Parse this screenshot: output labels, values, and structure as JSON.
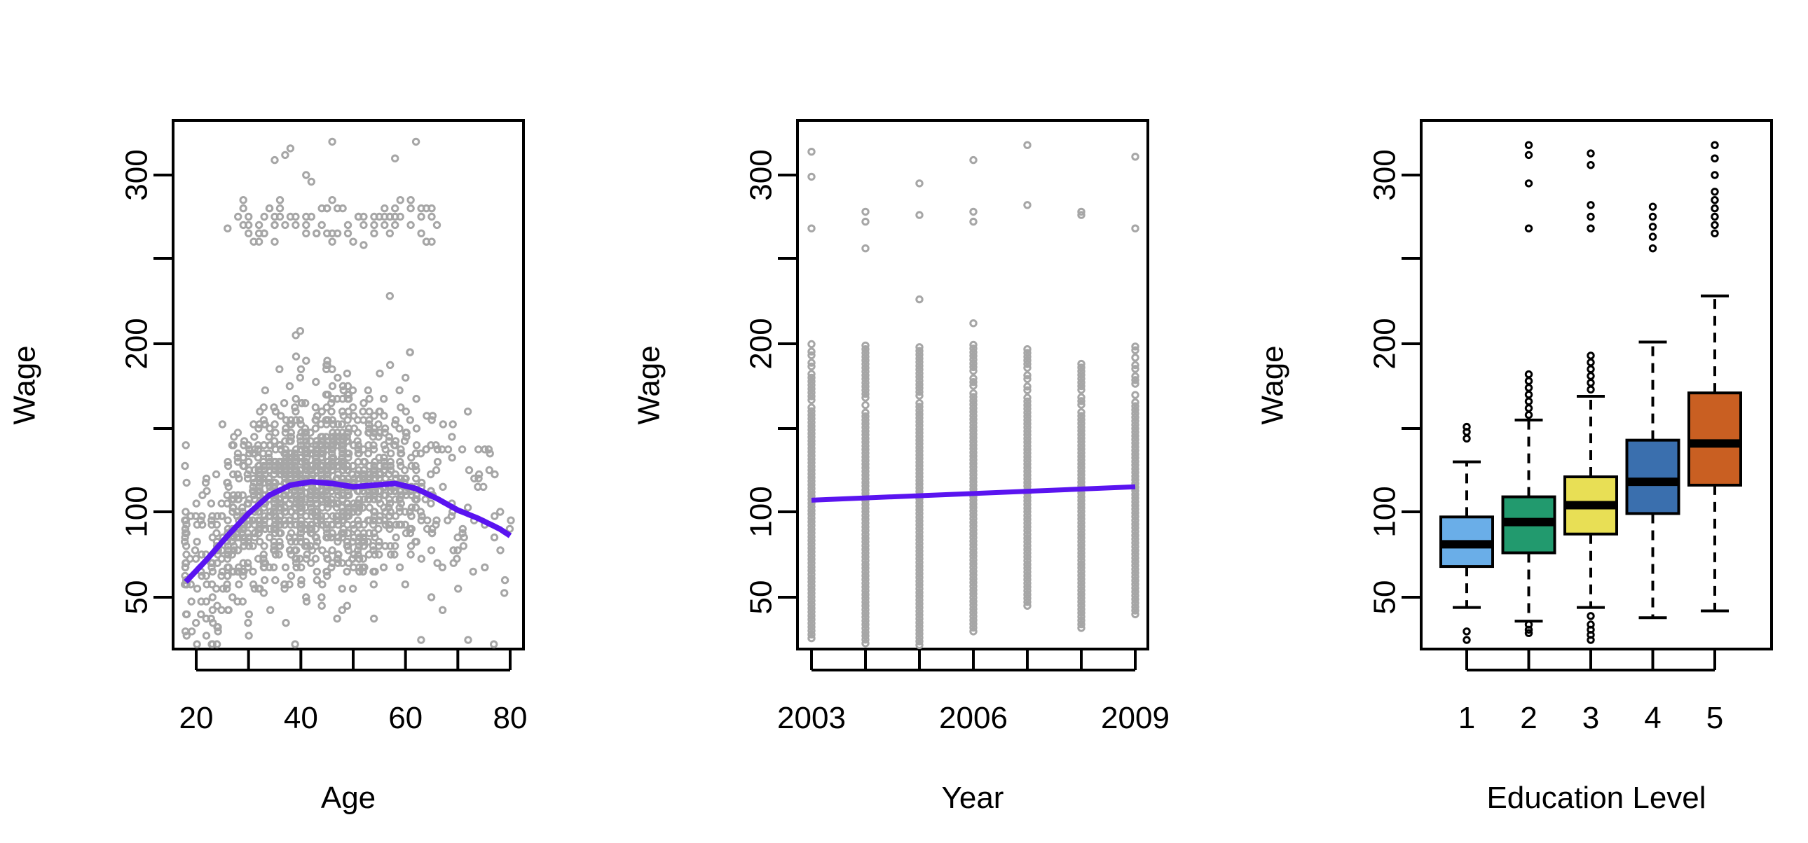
{
  "chart_data": [
    {
      "type": "scatter",
      "xlabel": "Age",
      "ylabel": "Wage",
      "xlim": [
        17,
        82
      ],
      "ylim": [
        20,
        330
      ],
      "xticks": [
        "20",
        "40",
        "60",
        "80"
      ],
      "xtick_values": [
        20,
        40,
        60,
        80
      ],
      "xticks_minor": [
        30,
        50,
        70
      ],
      "yticks": [
        "50",
        "100",
        "200",
        "300"
      ],
      "ytick_values": [
        50,
        100,
        200,
        300
      ],
      "yticks_minor": [
        150,
        250
      ],
      "point_color": "#a6a6a6",
      "fit_color": "#5a14f0",
      "fit_line": {
        "x": [
          18,
          22,
          26,
          30,
          34,
          38,
          42,
          46,
          50,
          54,
          58,
          62,
          66,
          70,
          74,
          78,
          80
        ],
        "y": [
          59,
          72,
          86,
          99,
          110,
          116,
          118,
          117,
          115,
          116,
          117,
          114,
          108,
          101,
          96,
          90,
          86
        ]
      },
      "high_wage_cluster": {
        "age_range": [
          28,
          66
        ],
        "wage_range": [
          260,
          285
        ],
        "count": 80
      },
      "bulk_points_count": 1500
    },
    {
      "type": "scatter",
      "xlabel": "Year",
      "ylabel": "Wage",
      "xlim": [
        2002.8,
        2009.3
      ],
      "ylim": [
        20,
        330
      ],
      "xticks": [
        "2003",
        "2006",
        "2009"
      ],
      "xtick_values": [
        2003,
        2006,
        2009
      ],
      "xticks_minor": [
        2004,
        2005,
        2007,
        2008
      ],
      "yticks": [
        "50",
        "100",
        "200",
        "300"
      ],
      "ytick_values": [
        50,
        100,
        200,
        300
      ],
      "yticks_minor": [
        150,
        250
      ],
      "point_color": "#a6a6a6",
      "fit_color": "#5a14f0",
      "fit_line": {
        "x": [
          2003,
          2009
        ],
        "y": [
          107,
          115
        ]
      },
      "years": [
        2003,
        2004,
        2005,
        2006,
        2007,
        2008,
        2009
      ],
      "year_ranges": [
        {
          "year": 2003,
          "min": 26,
          "max": 200,
          "outliers": [
            268,
            299,
            314
          ]
        },
        {
          "year": 2004,
          "min": 23,
          "max": 200,
          "outliers": [
            256,
            272,
            278
          ]
        },
        {
          "year": 2005,
          "min": 22,
          "max": 200,
          "outliers": [
            226,
            276,
            295
          ]
        },
        {
          "year": 2006,
          "min": 30,
          "max": 200,
          "outliers": [
            212,
            272,
            278,
            309
          ]
        },
        {
          "year": 2007,
          "min": 45,
          "max": 200,
          "outliers": [
            282,
            318
          ]
        },
        {
          "year": 2008,
          "min": 32,
          "max": 190,
          "outliers": [
            276,
            278
          ]
        },
        {
          "year": 2009,
          "min": 40,
          "max": 200,
          "outliers": [
            268,
            311
          ]
        }
      ]
    },
    {
      "type": "box",
      "xlabel": "Education Level",
      "ylabel": "Wage",
      "ylim": [
        20,
        330
      ],
      "yticks": [
        "50",
        "100",
        "200",
        "300"
      ],
      "ytick_values": [
        50,
        100,
        200,
        300
      ],
      "yticks_minor": [
        150,
        250
      ],
      "categories": [
        "1",
        "2",
        "3",
        "4",
        "5"
      ],
      "boxes": [
        {
          "level": "1",
          "color": "#6aaee8",
          "whisker_low": 44,
          "q1": 68,
          "median": 81,
          "q3": 97,
          "whisker_high": 130,
          "outliers_low": [
            30,
            25
          ],
          "outliers_high": [
            144,
            148,
            151
          ]
        },
        {
          "level": "2",
          "color": "#229a6e",
          "whisker_low": 36,
          "q1": 76,
          "median": 94,
          "q3": 109,
          "whisker_high": 155,
          "outliers_low": [
            34,
            31,
            29
          ],
          "outliers_high": [
            158,
            162,
            166,
            170,
            174,
            178,
            182,
            268,
            295,
            312,
            318
          ]
        },
        {
          "level": "3",
          "color": "#e8df55",
          "whisker_low": 44,
          "q1": 87,
          "median": 104,
          "q3": 121,
          "whisker_high": 169,
          "outliers_low": [
            39,
            34,
            31,
            28,
            25
          ],
          "outliers_high": [
            173,
            177,
            181,
            185,
            189,
            193,
            268,
            275,
            282,
            306,
            313
          ]
        },
        {
          "level": "4",
          "color": "#3a6fae",
          "whisker_low": 38,
          "q1": 99,
          "median": 118,
          "q3": 143,
          "whisker_high": 201,
          "outliers_low": [],
          "outliers_high": [
            256,
            263,
            269,
            275,
            281
          ]
        },
        {
          "level": "5",
          "color": "#c95f22",
          "whisker_low": 42,
          "q1": 116,
          "median": 141,
          "q3": 171,
          "whisker_high": 228,
          "outliers_low": [],
          "outliers_high": [
            265,
            270,
            275,
            280,
            285,
            290,
            300,
            310,
            318
          ]
        }
      ]
    }
  ]
}
